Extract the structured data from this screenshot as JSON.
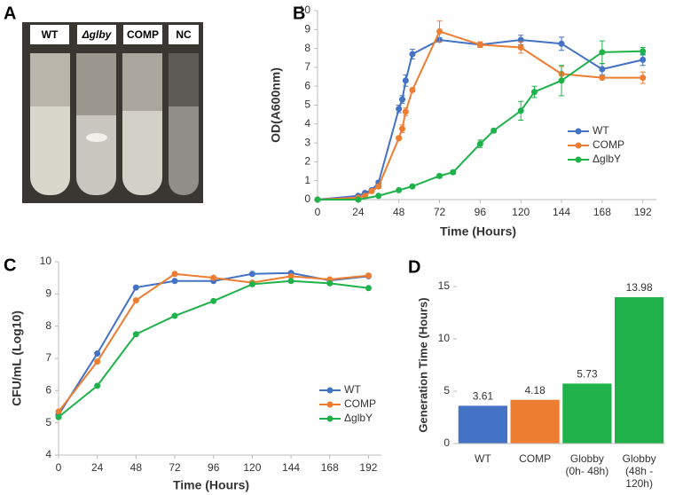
{
  "photo": {
    "panel": "A",
    "labels": [
      "WT",
      "Δglby",
      "COMP",
      "NC"
    ]
  },
  "chart_data": [
    {
      "type": "line",
      "panel": "B",
      "ylabel": "OD(A600nm)",
      "xlabel": "Time (Hours)",
      "xlim": [
        0,
        200
      ],
      "ylim": [
        0,
        10
      ],
      "xticks": [
        0,
        24,
        48,
        72,
        96,
        120,
        144,
        168,
        192
      ],
      "yticks": [
        0,
        1,
        2,
        3,
        4,
        5,
        6,
        7,
        8,
        9,
        10
      ],
      "series": [
        {
          "name": "WT",
          "color": "#4472c4",
          "x": [
            0,
            24,
            28,
            32,
            36,
            48,
            50,
            52,
            56,
            72,
            96,
            120,
            144,
            168,
            192
          ],
          "values": [
            0,
            0.2,
            0.35,
            0.5,
            0.9,
            4.8,
            5.3,
            6.3,
            7.7,
            8.45,
            8.2,
            8.45,
            8.25,
            6.9,
            7.4
          ],
          "errors": [
            0,
            0.05,
            0.05,
            0.05,
            0.1,
            0.2,
            0.2,
            0.3,
            0.25,
            0.1,
            0.1,
            0.25,
            0.35,
            0.3,
            0.3
          ]
        },
        {
          "name": "COMP",
          "color": "#ed7d31",
          "x": [
            0,
            24,
            28,
            32,
            36,
            48,
            50,
            52,
            56,
            72,
            96,
            120,
            144,
            168,
            192
          ],
          "values": [
            0,
            0.1,
            0.2,
            0.45,
            0.7,
            3.25,
            3.75,
            4.65,
            5.8,
            8.9,
            8.2,
            8.05,
            6.65,
            6.45,
            6.45
          ],
          "errors": [
            0,
            0.05,
            0.05,
            0.05,
            0.1,
            0.1,
            0.2,
            0.2,
            0.1,
            0.55,
            0.15,
            0.3,
            0.4,
            0.1,
            0.3
          ]
        },
        {
          "name": "ΔglbY",
          "color": "#1fb24a",
          "x": [
            0,
            24,
            36,
            48,
            56,
            72,
            80,
            96,
            104,
            120,
            128,
            144,
            168,
            192
          ],
          "values": [
            0,
            0,
            0.2,
            0.5,
            0.7,
            1.25,
            1.45,
            2.95,
            3.65,
            4.7,
            5.7,
            6.3,
            7.8,
            7.85
          ],
          "errors": [
            0,
            0,
            0.05,
            0.05,
            0.05,
            0.1,
            0.1,
            0.2,
            0.1,
            0.5,
            0.3,
            0.8,
            0.6,
            0.2
          ]
        }
      ]
    },
    {
      "type": "line",
      "panel": "C",
      "ylabel": "CFU/mL (Log10)",
      "xlabel": "Time (Hours)",
      "xlim": [
        0,
        200
      ],
      "ylim": [
        4,
        10
      ],
      "xticks": [
        0,
        24,
        48,
        72,
        96,
        120,
        144,
        168,
        192
      ],
      "yticks": [
        4,
        5,
        6,
        7,
        8,
        9,
        10
      ],
      "series": [
        {
          "name": "WT",
          "color": "#4472c4",
          "x": [
            0,
            24,
            48,
            72,
            96,
            120,
            144,
            168,
            192
          ],
          "values": [
            5.25,
            7.15,
            9.2,
            9.4,
            9.4,
            9.62,
            9.65,
            9.42,
            9.55
          ]
        },
        {
          "name": "COMP",
          "color": "#ed7d31",
          "x": [
            0,
            24,
            48,
            72,
            96,
            120,
            144,
            168,
            192
          ],
          "values": [
            5.35,
            6.9,
            8.8,
            9.62,
            9.5,
            9.35,
            9.55,
            9.45,
            9.57
          ]
        },
        {
          "name": "ΔglbY",
          "color": "#1fb24a",
          "x": [
            0,
            24,
            48,
            72,
            96,
            120,
            144,
            168,
            192
          ],
          "values": [
            5.18,
            6.15,
            7.75,
            8.32,
            8.78,
            9.3,
            9.4,
            9.33,
            9.18
          ]
        }
      ]
    },
    {
      "type": "bar",
      "panel": "D",
      "ylabel": "Generation Time (Hours)",
      "categories": [
        "WT",
        "COMP",
        "Globby (0h- 48h)",
        "Globby (48h - 120h)"
      ],
      "values": [
        3.61,
        4.18,
        5.73,
        13.98
      ],
      "colors": [
        "#4472c4",
        "#ed7d31",
        "#1fb24a",
        "#1fb24a"
      ],
      "ylim": [
        0,
        15
      ],
      "yticks": [
        0,
        5,
        10,
        15
      ]
    }
  ]
}
